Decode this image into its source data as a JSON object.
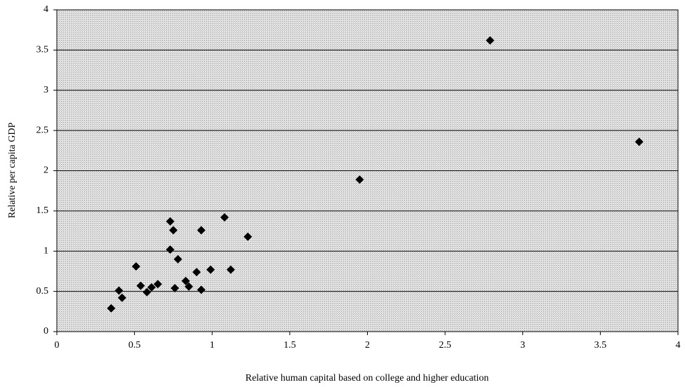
{
  "chart_data": {
    "type": "scatter",
    "x_label": "Relative human capital based on college and higher education",
    "y_label": "Relative per capita GDP",
    "color": "#000000",
    "x": [
      0.35,
      0.4,
      0.42,
      0.51,
      0.54,
      0.58,
      0.61,
      0.65,
      0.73,
      0.75,
      0.73,
      0.76,
      0.78,
      0.83,
      0.85,
      0.9,
      0.93,
      0.93,
      0.99,
      1.08,
      1.12,
      1.23,
      1.95,
      2.79,
      3.75
    ],
    "values": [
      0.29,
      0.51,
      0.42,
      0.81,
      0.57,
      0.49,
      0.55,
      0.59,
      1.37,
      1.26,
      1.02,
      0.54,
      0.9,
      0.63,
      0.56,
      0.74,
      1.26,
      0.52,
      0.77,
      1.42,
      0.77,
      1.18,
      1.89,
      3.62,
      2.36
    ],
    "xlim": [
      0,
      4
    ],
    "xticks": [
      0,
      0.5,
      1,
      1.5,
      2,
      2.5,
      3,
      3.5,
      4
    ],
    "ylim": [
      0,
      4
    ],
    "yticks": [
      0,
      0.5,
      1,
      1.5,
      2,
      2.5,
      3,
      3.5,
      4
    ],
    "grid": true
  }
}
